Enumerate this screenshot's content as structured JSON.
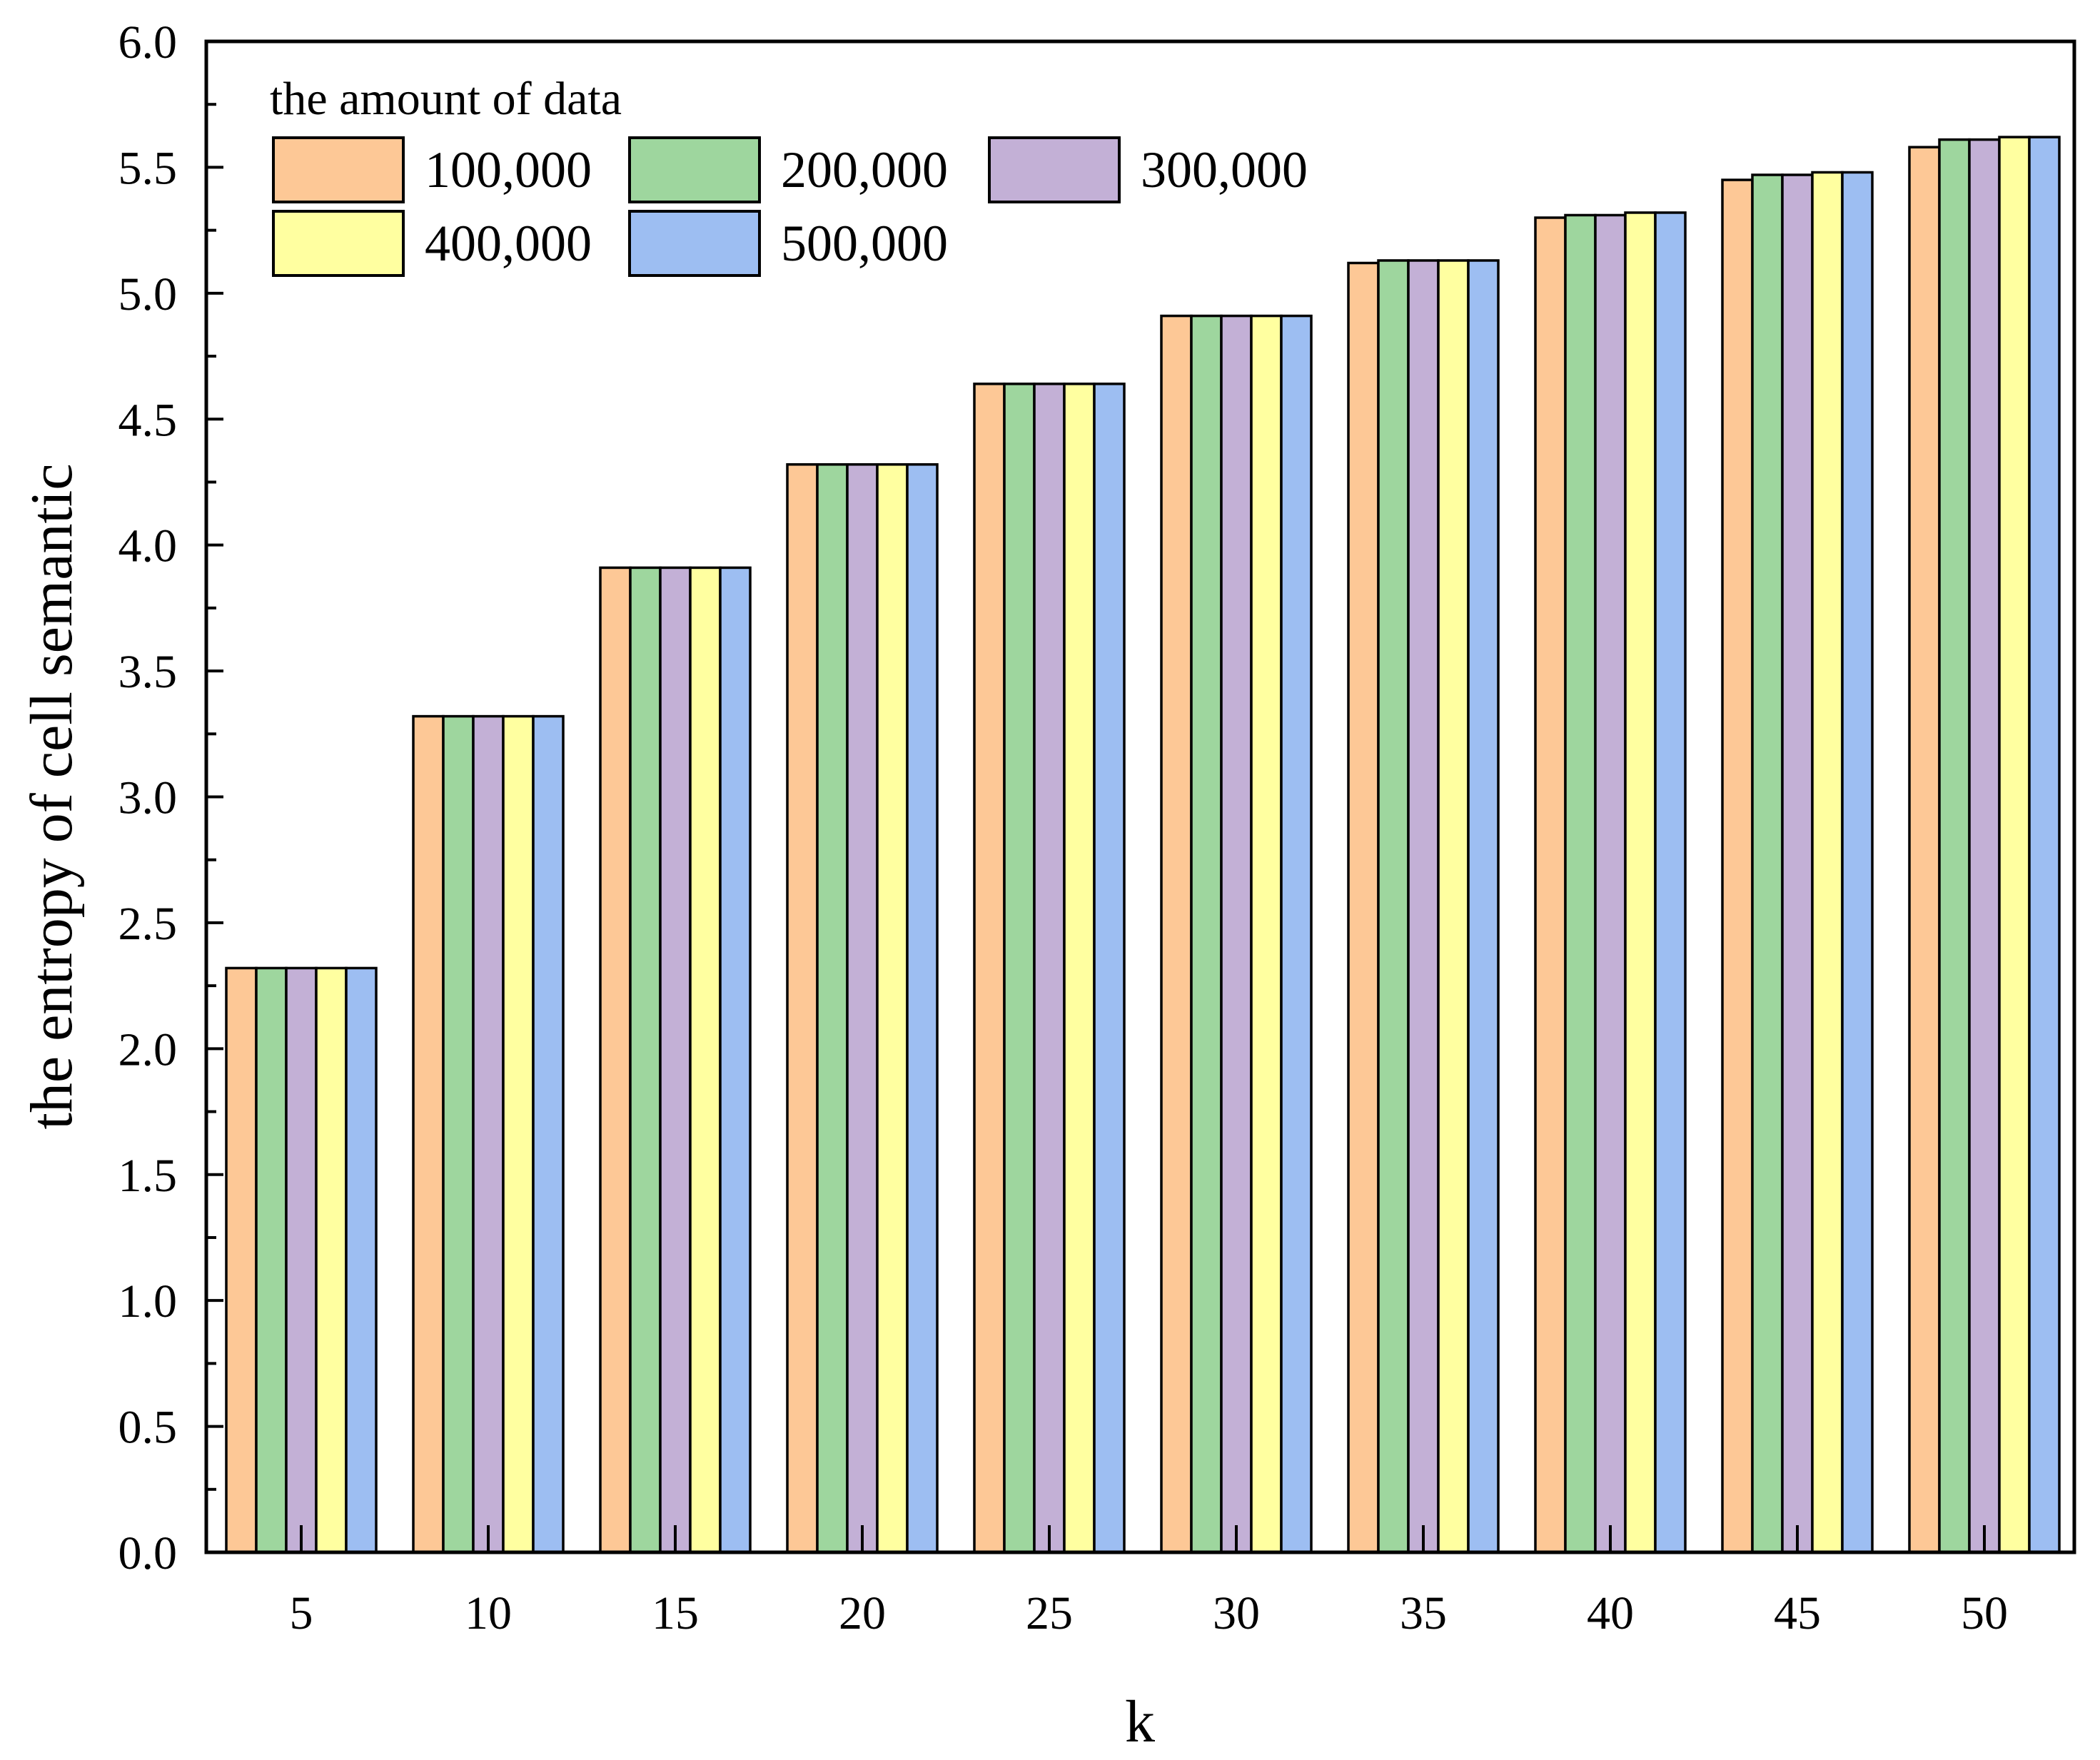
{
  "chart_data": {
    "type": "bar",
    "title": "",
    "xlabel": "k",
    "ylabel": "the entropy of cell semantic",
    "categories": [
      "5",
      "10",
      "15",
      "20",
      "25",
      "30",
      "35",
      "40",
      "45",
      "50"
    ],
    "ylim": [
      0,
      6.0
    ],
    "yticks": [
      "0.0",
      "0.5",
      "1.0",
      "1.5",
      "2.0",
      "2.5",
      "3.0",
      "3.5",
      "4.0",
      "4.5",
      "5.0",
      "5.5",
      "6.0"
    ],
    "legend_title": "the amount of data",
    "legend_position": "top-left",
    "grid": false,
    "series": [
      {
        "name": "100,000",
        "color": "#FDC896",
        "values": [
          2.32,
          3.32,
          3.91,
          4.32,
          4.64,
          4.91,
          5.12,
          5.3,
          5.45,
          5.58
        ]
      },
      {
        "name": "200,000",
        "color": "#9ED69E",
        "values": [
          2.32,
          3.32,
          3.91,
          4.32,
          4.64,
          4.91,
          5.13,
          5.31,
          5.47,
          5.61
        ]
      },
      {
        "name": "300,000",
        "color": "#C3B0D6",
        "values": [
          2.32,
          3.32,
          3.91,
          4.32,
          4.64,
          4.91,
          5.13,
          5.31,
          5.47,
          5.61
        ]
      },
      {
        "name": "400,000",
        "color": "#FFFFA0",
        "values": [
          2.32,
          3.32,
          3.91,
          4.32,
          4.64,
          4.91,
          5.13,
          5.32,
          5.48,
          5.62
        ]
      },
      {
        "name": "500,000",
        "color": "#9DBEF2",
        "values": [
          2.32,
          3.32,
          3.91,
          4.32,
          4.64,
          4.91,
          5.13,
          5.32,
          5.48,
          5.62
        ]
      }
    ]
  }
}
